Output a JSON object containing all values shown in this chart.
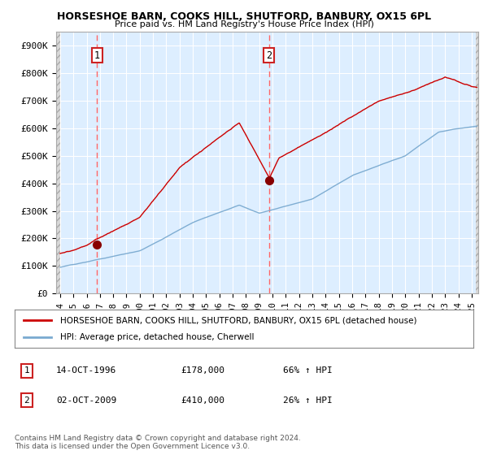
{
  "title": "HORSESHOE BARN, COOKS HILL, SHUTFORD, BANBURY, OX15 6PL",
  "subtitle": "Price paid vs. HM Land Registry's House Price Index (HPI)",
  "ylabel_ticks": [
    "£0",
    "£100K",
    "£200K",
    "£300K",
    "£400K",
    "£500K",
    "£600K",
    "£700K",
    "£800K",
    "£900K"
  ],
  "ytick_vals": [
    0,
    100000,
    200000,
    300000,
    400000,
    500000,
    600000,
    700000,
    800000,
    900000
  ],
  "ylim": [
    0,
    950000
  ],
  "xlim_start": 1993.7,
  "xlim_end": 2025.5,
  "sale1_x": 1996.79,
  "sale1_y": 178000,
  "sale2_x": 2009.75,
  "sale2_y": 410000,
  "sale1_label": "1",
  "sale2_label": "2",
  "legend_line1": "HORSESHOE BARN, COOKS HILL, SHUTFORD, BANBURY, OX15 6PL (detached house)",
  "legend_line2": "HPI: Average price, detached house, Cherwell",
  "table_row1": [
    "1",
    "14-OCT-1996",
    "£178,000",
    "66% ↑ HPI"
  ],
  "table_row2": [
    "2",
    "02-OCT-2009",
    "£410,000",
    "26% ↑ HPI"
  ],
  "footer": "Contains HM Land Registry data © Crown copyright and database right 2024.\nThis data is licensed under the Open Government Licence v3.0.",
  "price_color": "#cc0000",
  "hpi_color": "#7aaad0",
  "plot_bg_color": "#ddeeff",
  "hatch_bg_color": "#d8d8d8",
  "grid_color": "#aaccee",
  "sale_marker_color": "#880000",
  "dashed_line_color": "#ff6666"
}
